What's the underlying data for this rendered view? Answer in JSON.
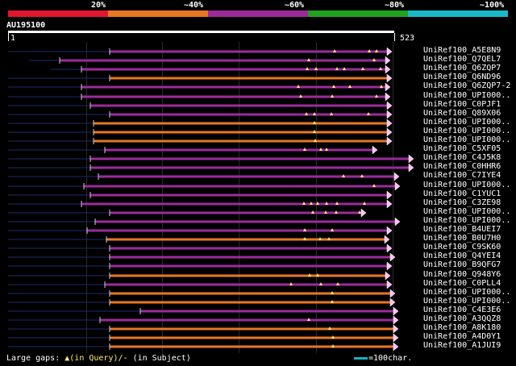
{
  "legend": [
    {
      "label": "20%",
      "color": "#e2162e"
    },
    {
      "label": "~40%",
      "color": "#e87722"
    },
    {
      "label": "~60%",
      "color": "#9b2b9b"
    },
    {
      "label": "~80%",
      "color": "#21a121"
    },
    {
      "label": "~100%",
      "color": "#1ab8c8"
    }
  ],
  "query": {
    "name": "AU195100",
    "start": "1",
    "end": "523"
  },
  "hits": [
    {
      "id": "UniRef100_A5E8N9",
      "color": "#9b2b9b"
    },
    {
      "id": "UniRef100_Q7QEL7",
      "color": "#9b2b9b"
    },
    {
      "id": "UniRef100_Q6ZQP7",
      "color": "#9b2b9b"
    },
    {
      "id": "UniRef100_Q6ND96",
      "color": "#e87722"
    },
    {
      "id": "UniRef100_Q6ZQP7-2",
      "color": "#9b2b9b"
    },
    {
      "id": "UniRef100_UPI000..",
      "color": "#9b2b9b"
    },
    {
      "id": "UniRef100_C0PJF1",
      "color": "#9b2b9b"
    },
    {
      "id": "UniRef100_Q89X06",
      "color": "#9b2b9b"
    },
    {
      "id": "UniRef100_UPI000..",
      "color": "#e87722"
    },
    {
      "id": "UniRef100_UPI000..",
      "color": "#e87722"
    },
    {
      "id": "UniRef100_UPI000..",
      "color": "#e87722"
    },
    {
      "id": "UniRef100_C5XF05",
      "color": "#9b2b9b"
    },
    {
      "id": "UniRef100_C4J5K8",
      "color": "#9b2b9b"
    },
    {
      "id": "UniRef100_C0HHR6",
      "color": "#9b2b9b"
    },
    {
      "id": "UniRef100_C7IYE4",
      "color": "#9b2b9b"
    },
    {
      "id": "UniRef100_UPI000..",
      "color": "#9b2b9b"
    },
    {
      "id": "UniRef100_C1YUC1",
      "color": "#9b2b9b"
    },
    {
      "id": "UniRef100_C3ZE98",
      "color": "#9b2b9b"
    },
    {
      "id": "UniRef100_UPI000..",
      "color": "#9b2b9b"
    },
    {
      "id": "UniRef100_UPI000..",
      "color": "#9b2b9b"
    },
    {
      "id": "UniRef100_B4UEI7",
      "color": "#9b2b9b"
    },
    {
      "id": "UniRef100_B0U7H0",
      "color": "#e87722"
    },
    {
      "id": "UniRef100_C9SK60",
      "color": "#9b2b9b"
    },
    {
      "id": "UniRef100_Q4YEI4",
      "color": "#9b2b9b"
    },
    {
      "id": "UniRef100_B9QFG7",
      "color": "#9b2b9b"
    },
    {
      "id": "UniRef100_Q948Y6",
      "color": "#e87722"
    },
    {
      "id": "UniRef100_C0PLL4",
      "color": "#9b2b9b"
    },
    {
      "id": "UniRef100_UPI000..",
      "color": "#e87722"
    },
    {
      "id": "UniRef100_UPI000..",
      "color": "#e87722"
    },
    {
      "id": "UniRef100_C4E3E6",
      "color": "#9b2b9b"
    },
    {
      "id": "UniRef100_A3QQZ8",
      "color": "#9b2b9b"
    },
    {
      "id": "UniRef100_A8K180",
      "color": "#e87722"
    },
    {
      "id": "UniRef100_A4D0Y1",
      "color": "#e87722"
    },
    {
      "id": "UniRef100_A1JUI9",
      "color": "#e87722"
    }
  ],
  "footer": {
    "gaps_label": "Large gaps:",
    "gaps_query": "▲(in Query)/",
    "gaps_subject": "- (in Subject)",
    "scale_label": "=100char."
  },
  "colors": {
    "background": "#000000",
    "thin_line": "#1b2b6b",
    "triangle": "#ffe97a",
    "arrow": "#f7c2f0"
  }
}
